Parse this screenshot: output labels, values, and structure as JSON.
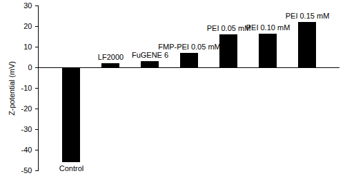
{
  "chart_data": {
    "type": "bar",
    "y_label": "Z-potential (mV)",
    "categories": [
      "Control",
      "LF2000",
      "FuGENE 6",
      "FMP-PEI 0.05 mM",
      "PEI 0.05 mM",
      "PEI 0.10 mM",
      "PEI 0.15 mM"
    ],
    "values": [
      -46,
      2,
      3,
      7,
      16,
      16.3,
      22
    ],
    "color": "#000000",
    "ylim": [
      -50,
      30
    ],
    "yticks": [
      -50,
      -40,
      -30,
      -20,
      -10,
      0,
      10,
      20,
      30
    ],
    "grid": false
  }
}
